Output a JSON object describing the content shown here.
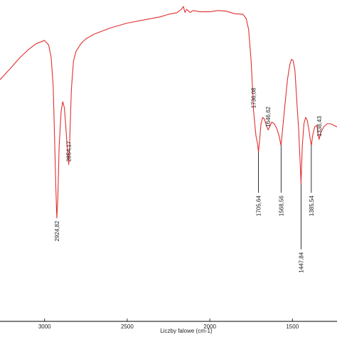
{
  "chart_data": {
    "type": "line",
    "title": "",
    "xlabel": "Liczby falowe (cm-1)",
    "ylabel": "",
    "x_reversed": true,
    "xlim": [
      3270,
      1230
    ],
    "ylim": [
      0,
      100
    ],
    "grid": false,
    "colors": {
      "series": "#e03030",
      "markers": "#000000",
      "axis": "#000000"
    },
    "x_ticks": [
      {
        "value": 3000,
        "label": "3000"
      },
      {
        "value": 2500,
        "label": "2500"
      },
      {
        "value": 2000,
        "label": "2000"
      },
      {
        "value": 1500,
        "label": "1500"
      }
    ],
    "series": [
      {
        "points": [
          [
            3270,
            76
          ],
          [
            3200,
            80
          ],
          [
            3150,
            83
          ],
          [
            3100,
            85.5
          ],
          [
            3050,
            87.5
          ],
          [
            3000,
            88.5
          ],
          [
            2975,
            87
          ],
          [
            2960,
            83
          ],
          [
            2948,
            74
          ],
          [
            2940,
            58
          ],
          [
            2932,
            42
          ],
          [
            2926,
            32
          ],
          [
            2920,
            38
          ],
          [
            2912,
            55
          ],
          [
            2900,
            66
          ],
          [
            2890,
            69
          ],
          [
            2880,
            67
          ],
          [
            2870,
            60
          ],
          [
            2860,
            52
          ],
          [
            2854,
            49
          ],
          [
            2848,
            57
          ],
          [
            2838,
            73
          ],
          [
            2825,
            82
          ],
          [
            2810,
            85
          ],
          [
            2780,
            87.5
          ],
          [
            2750,
            89
          ],
          [
            2700,
            90.5
          ],
          [
            2600,
            92.5
          ],
          [
            2500,
            94
          ],
          [
            2400,
            95
          ],
          [
            2300,
            96
          ],
          [
            2250,
            96.8
          ],
          [
            2200,
            97.3
          ],
          [
            2170,
            98.5
          ],
          [
            2160,
            99.3
          ],
          [
            2150,
            97.4
          ],
          [
            2140,
            98.4
          ],
          [
            2120,
            97.4
          ],
          [
            2100,
            98
          ],
          [
            2060,
            97.6
          ],
          [
            2000,
            97.6
          ],
          [
            1950,
            98
          ],
          [
            1900,
            97.8
          ],
          [
            1850,
            97
          ],
          [
            1800,
            96.8
          ],
          [
            1780,
            95.5
          ],
          [
            1765,
            92
          ],
          [
            1750,
            82
          ],
          [
            1740,
            72
          ],
          [
            1735,
            66
          ],
          [
            1728,
            62
          ],
          [
            1720,
            58
          ],
          [
            1712,
            56
          ],
          [
            1705.6,
            53
          ],
          [
            1698,
            57
          ],
          [
            1690,
            62
          ],
          [
            1680,
            64
          ],
          [
            1670,
            63.5
          ],
          [
            1655,
            61
          ],
          [
            1646.6,
            60
          ],
          [
            1638,
            61
          ],
          [
            1625,
            62.5
          ],
          [
            1610,
            62
          ],
          [
            1595,
            60.5
          ],
          [
            1580,
            58
          ],
          [
            1568.6,
            55
          ],
          [
            1558,
            61
          ],
          [
            1545,
            68
          ],
          [
            1530,
            76
          ],
          [
            1515,
            81
          ],
          [
            1505,
            82.5
          ],
          [
            1495,
            82
          ],
          [
            1485,
            79
          ],
          [
            1472,
            68
          ],
          [
            1462,
            60
          ],
          [
            1455,
            52
          ],
          [
            1447.8,
            43
          ],
          [
            1440,
            55
          ],
          [
            1430,
            62
          ],
          [
            1420,
            64
          ],
          [
            1410,
            63
          ],
          [
            1400,
            60
          ],
          [
            1392,
            57
          ],
          [
            1385.5,
            55
          ],
          [
            1378,
            58
          ],
          [
            1365,
            61
          ],
          [
            1352,
            61.5
          ],
          [
            1344,
            58.5
          ],
          [
            1338.4,
            57
          ],
          [
            1330,
            59
          ],
          [
            1310,
            61
          ],
          [
            1290,
            62
          ],
          [
            1270,
            62
          ],
          [
            1250,
            61.5
          ],
          [
            1230,
            61
          ]
        ]
      }
    ],
    "peaks": [
      {
        "value": 2924.82,
        "label": "2924,82",
        "y_tip": 32,
        "y_end": 32,
        "label_pos": "below"
      },
      {
        "value": 2854.17,
        "label": "2854,17",
        "y_tip": 49,
        "y_end": 49,
        "label_pos": "above"
      },
      {
        "value": 1736.08,
        "label": "1736,08",
        "y_tip": 66,
        "y_end": 66,
        "label_pos": "above"
      },
      {
        "value": 1705.64,
        "label": "1705,64",
        "y_tip": 53,
        "y_end": 40,
        "label_pos": "below"
      },
      {
        "value": 1646.62,
        "label": "1646,62",
        "y_tip": 60,
        "y_end": 60,
        "label_pos": "above"
      },
      {
        "value": 1568.56,
        "label": "1568,56",
        "y_tip": 55,
        "y_end": 40,
        "label_pos": "below"
      },
      {
        "value": 1447.84,
        "label": "1447,84",
        "y_tip": 43,
        "y_end": 22,
        "label_pos": "below"
      },
      {
        "value": 1385.54,
        "label": "1385,54",
        "y_tip": 55,
        "y_end": 40,
        "label_pos": "below"
      },
      {
        "value": 1338.43,
        "label": "1338,43",
        "y_tip": 57,
        "y_end": 57,
        "label_pos": "above"
      }
    ]
  }
}
